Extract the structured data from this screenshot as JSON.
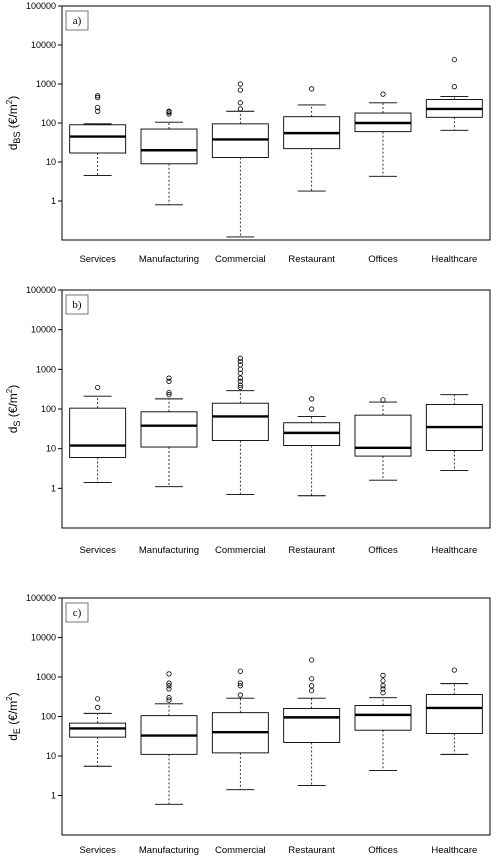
{
  "chart_data": [
    {
      "type": "box",
      "panel_label": "a)",
      "ylabel": {
        "base": "d",
        "sub": "BS",
        "unit": " (€/m",
        "sup": "2",
        "close": ")"
      },
      "yscale": "log",
      "ylim": [
        0.1,
        100000
      ],
      "yticks": [
        1,
        10,
        100,
        1000,
        10000,
        100000
      ],
      "ytick_labels": [
        "1",
        "10",
        "100",
        "1000",
        "10000",
        "100000"
      ],
      "categories": [
        "Services",
        "Manufacturing",
        "Commercial",
        "Restaurant",
        "Offices",
        "Healthcare"
      ],
      "boxes": [
        {
          "category": "Services",
          "whisker_low": 4.5,
          "q1": 17,
          "median": 45,
          "q3": 90,
          "whisker_high": 95,
          "outliers": [
            200,
            250,
            450,
            500
          ]
        },
        {
          "category": "Manufacturing",
          "whisker_low": 0.8,
          "q1": 9,
          "median": 20,
          "q3": 70,
          "whisker_high": 105,
          "outliers": [
            170,
            190,
            200
          ]
        },
        {
          "category": "Commercial",
          "whisker_low": 0.12,
          "q1": 13,
          "median": 38,
          "q3": 95,
          "whisker_high": 200,
          "outliers": [
            230,
            330,
            700,
            1000
          ]
        },
        {
          "category": "Restaurant",
          "whisker_low": 1.8,
          "q1": 22,
          "median": 55,
          "q3": 145,
          "whisker_high": 290,
          "outliers": [
            750
          ]
        },
        {
          "category": "Offices",
          "whisker_low": 4.3,
          "q1": 60,
          "median": 100,
          "q3": 180,
          "whisker_high": 330,
          "outliers": [
            550
          ]
        },
        {
          "category": "Healthcare",
          "whisker_low": 65,
          "q1": 140,
          "median": 230,
          "q3": 400,
          "whisker_high": 480,
          "outliers": [
            850,
            4200
          ]
        }
      ]
    },
    {
      "type": "box",
      "panel_label": "b)",
      "ylabel": {
        "base": "d",
        "sub": "S",
        "unit": " (€/m",
        "sup": "2",
        "close": ")"
      },
      "yscale": "log",
      "ylim": [
        0.1,
        100000
      ],
      "yticks": [
        1,
        10,
        100,
        1000,
        10000,
        100000
      ],
      "ytick_labels": [
        "1",
        "10",
        "100",
        "1000",
        "10000",
        "100000"
      ],
      "categories": [
        "Services",
        "Manufacturing",
        "Commercial",
        "Restaurant",
        "Offices",
        "Healthcare"
      ],
      "boxes": [
        {
          "category": "Services",
          "whisker_low": 1.4,
          "q1": 6,
          "median": 12,
          "q3": 105,
          "whisker_high": 210,
          "outliers": [
            350
          ]
        },
        {
          "category": "Manufacturing",
          "whisker_low": 1.1,
          "q1": 11,
          "median": 38,
          "q3": 85,
          "whisker_high": 180,
          "outliers": [
            230,
            260,
            500,
            600
          ]
        },
        {
          "category": "Commercial",
          "whisker_low": 0.7,
          "q1": 16,
          "median": 65,
          "q3": 140,
          "whisker_high": 290,
          "outliers": [
            350,
            400,
            500,
            600,
            800,
            1000,
            1300,
            1600,
            1900
          ]
        },
        {
          "category": "Restaurant",
          "whisker_low": 0.65,
          "q1": 12,
          "median": 25,
          "q3": 45,
          "whisker_high": 65,
          "outliers": [
            100,
            180
          ]
        },
        {
          "category": "Offices",
          "whisker_low": 1.6,
          "q1": 6.5,
          "median": 10.5,
          "q3": 70,
          "whisker_high": 150,
          "outliers": [
            170
          ]
        },
        {
          "category": "Healthcare",
          "whisker_low": 2.8,
          "q1": 9,
          "median": 35,
          "q3": 130,
          "whisker_high": 230,
          "outliers": []
        }
      ]
    },
    {
      "type": "box",
      "panel_label": "c)",
      "ylabel": {
        "base": "d",
        "sub": "E",
        "unit": " (€/m",
        "sup": "2",
        "close": ")"
      },
      "yscale": "log",
      "ylim": [
        0.1,
        100000
      ],
      "yticks": [
        1,
        10,
        100,
        1000,
        10000,
        100000
      ],
      "ytick_labels": [
        "1",
        "10",
        "100",
        "1000",
        "10000",
        "100000"
      ],
      "categories": [
        "Services",
        "Manufacturing",
        "Commercial",
        "Restaurant",
        "Offices",
        "Healthcare"
      ],
      "boxes": [
        {
          "category": "Services",
          "whisker_low": 5.5,
          "q1": 30,
          "median": 50,
          "q3": 68,
          "whisker_high": 120,
          "outliers": [
            170,
            280
          ]
        },
        {
          "category": "Manufacturing",
          "whisker_low": 0.6,
          "q1": 11,
          "median": 33,
          "q3": 105,
          "whisker_high": 210,
          "outliers": [
            260,
            300,
            500,
            600,
            700,
            1200
          ]
        },
        {
          "category": "Commercial",
          "whisker_low": 1.4,
          "q1": 12,
          "median": 40,
          "q3": 125,
          "whisker_high": 290,
          "outliers": [
            350,
            600,
            700,
            1400
          ]
        },
        {
          "category": "Restaurant",
          "whisker_low": 1.8,
          "q1": 22,
          "median": 95,
          "q3": 160,
          "whisker_high": 290,
          "outliers": [
            450,
            600,
            900,
            2700
          ]
        },
        {
          "category": "Offices",
          "whisker_low": 4.3,
          "q1": 45,
          "median": 110,
          "q3": 190,
          "whisker_high": 300,
          "outliers": [
            400,
            500,
            600,
            800,
            1100
          ]
        },
        {
          "category": "Healthcare",
          "whisker_low": 11,
          "q1": 37,
          "median": 165,
          "q3": 360,
          "whisker_high": 680,
          "outliers": [
            1500
          ]
        }
      ]
    }
  ]
}
